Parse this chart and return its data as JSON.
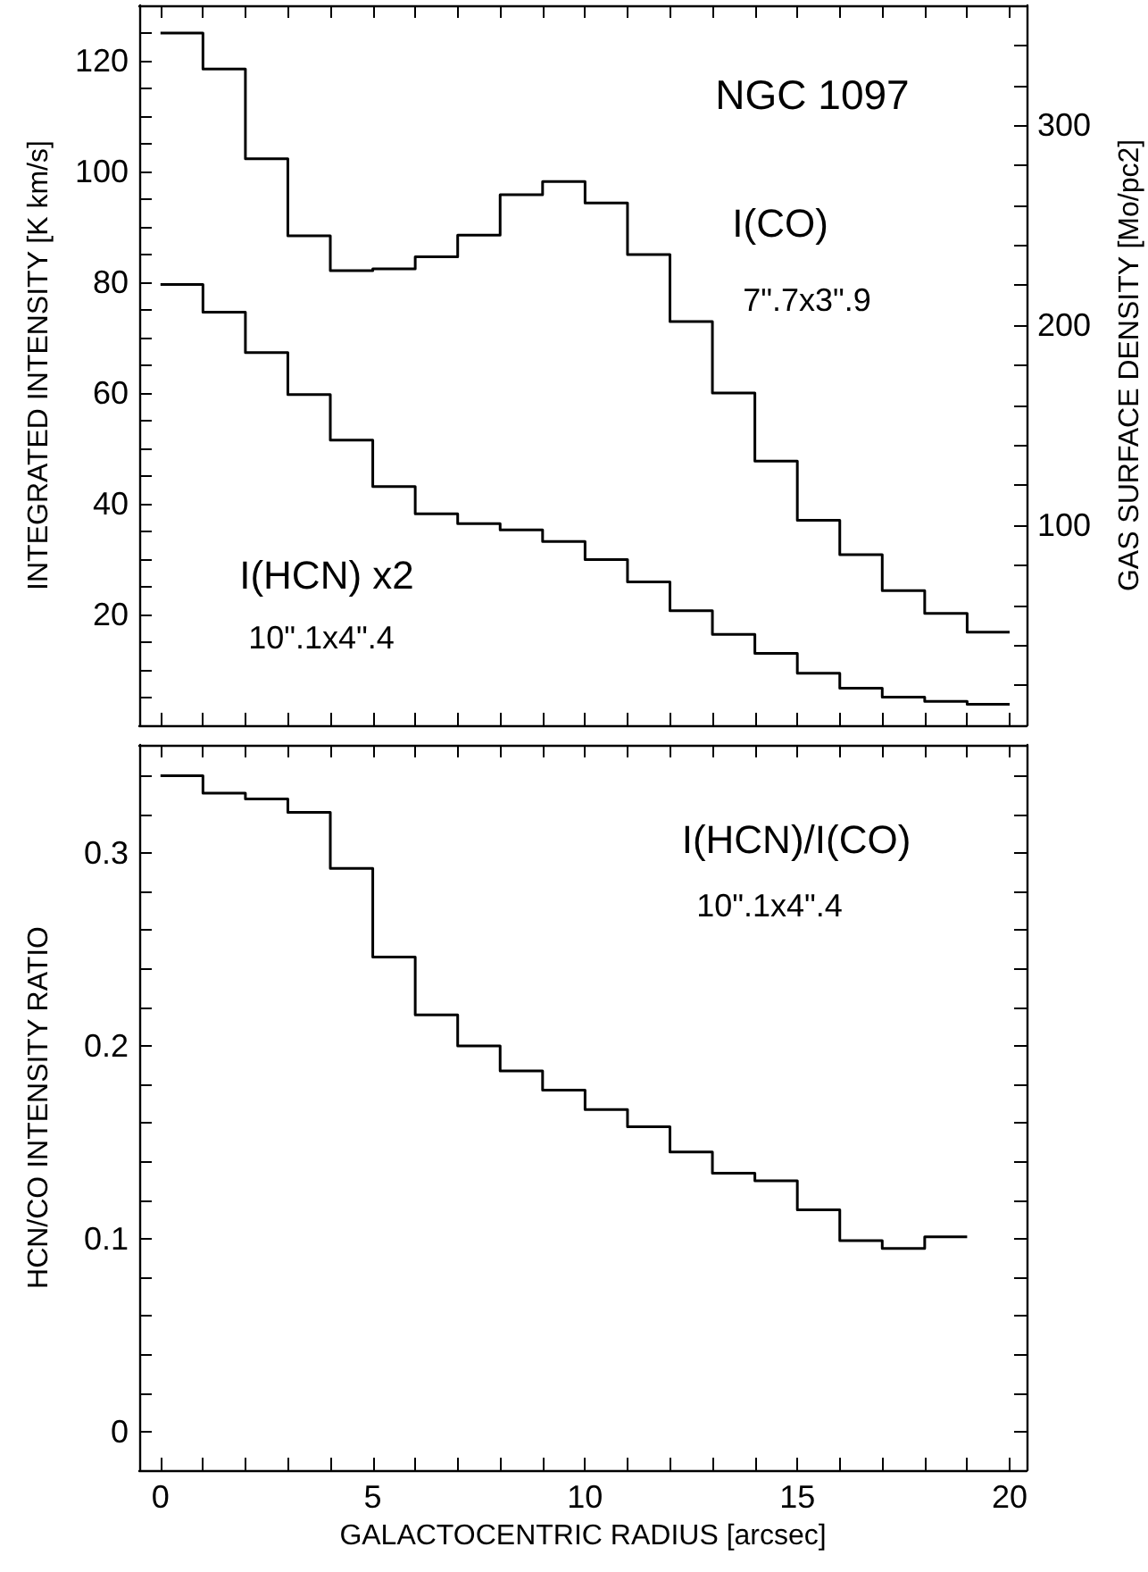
{
  "chart_data": [
    {
      "type": "step",
      "title": "NGC 1097",
      "ylabel": "INTEGRATED INTENSITY [K km/s]",
      "y2label": "GAS SURFACE DENSITY [Mo/pc2]",
      "annotations": [
        "7\".7x3\".9",
        "10\".1x4\".4"
      ],
      "x": [
        0,
        1,
        2,
        3,
        4,
        5,
        6,
        7,
        8,
        9,
        10,
        11,
        12,
        13,
        14,
        15,
        16,
        17,
        18,
        19,
        20
      ],
      "series": [
        {
          "name": "I(CO)",
          "color": "#000000",
          "values": [
            125,
            118.5,
            102.3,
            88.4,
            82.1,
            82.4,
            84.6,
            88.5,
            95.8,
            98.2,
            94.3,
            85,
            72.9,
            60,
            47.7,
            37,
            30.8,
            24.3,
            20.2,
            16.8,
            16.8
          ]
        },
        {
          "name": "I(HCN) x2",
          "color": "#000000",
          "values": [
            79.6,
            74.6,
            67.3,
            59.7,
            51.5,
            43.1,
            38.2,
            36.4,
            35.3,
            33.2,
            29.9,
            25.9,
            20.7,
            16.4,
            13,
            9.4,
            6.7,
            5.1,
            4.3,
            3.8,
            3.8
          ]
        }
      ],
      "xlim": [
        -0.5,
        20.4
      ],
      "xticks": [
        {
          "value": 0,
          "label": null
        },
        {
          "value": 1,
          "label": null
        },
        {
          "value": 2,
          "label": null
        },
        {
          "value": 3,
          "label": null
        },
        {
          "value": 4,
          "label": null
        },
        {
          "value": 5,
          "label": null
        },
        {
          "value": 6,
          "label": null
        },
        {
          "value": 7,
          "label": null
        },
        {
          "value": 8,
          "label": null
        },
        {
          "value": 9,
          "label": null
        },
        {
          "value": 10,
          "label": null
        },
        {
          "value": 11,
          "label": null
        },
        {
          "value": 12,
          "label": null
        },
        {
          "value": 13,
          "label": null
        },
        {
          "value": 14,
          "label": null
        },
        {
          "value": 15,
          "label": null
        },
        {
          "value": 16,
          "label": null
        },
        {
          "value": 17,
          "label": null
        },
        {
          "value": 18,
          "label": null
        },
        {
          "value": 19,
          "label": null
        },
        {
          "value": 20,
          "label": null
        }
      ],
      "ylim": [
        0,
        130
      ],
      "yticks": [
        {
          "value": 5,
          "label": null
        },
        {
          "value": 10,
          "label": null
        },
        {
          "value": 15,
          "label": null
        },
        20,
        {
          "value": 25,
          "label": null
        },
        {
          "value": 30,
          "label": null
        },
        {
          "value": 35,
          "label": null
        },
        40,
        {
          "value": 45,
          "label": null
        },
        {
          "value": 50,
          "label": null
        },
        {
          "value": 55,
          "label": null
        },
        60,
        {
          "value": 65,
          "label": null
        },
        {
          "value": 70,
          "label": null
        },
        {
          "value": 75,
          "label": null
        },
        80,
        {
          "value": 85,
          "label": null
        },
        {
          "value": 90,
          "label": null
        },
        {
          "value": 95,
          "label": null
        },
        100,
        {
          "value": 105,
          "label": null
        },
        {
          "value": 110,
          "label": null
        },
        {
          "value": 115,
          "label": null
        },
        120,
        {
          "value": 125,
          "label": null
        }
      ],
      "y2lim": [
        0,
        360
      ],
      "y2ticks": [
        {
          "value": 20,
          "label": null
        },
        {
          "value": 40,
          "label": null
        },
        {
          "value": 60,
          "label": null
        },
        {
          "value": 80,
          "label": null
        },
        100,
        {
          "value": 120,
          "label": null
        },
        {
          "value": 140,
          "label": null
        },
        {
          "value": 160,
          "label": null
        },
        {
          "value": 180,
          "label": null
        },
        200,
        {
          "value": 220,
          "label": null
        },
        {
          "value": 240,
          "label": null
        },
        {
          "value": 260,
          "label": null
        },
        {
          "value": 280,
          "label": null
        },
        300,
        {
          "value": 320,
          "label": null
        },
        {
          "value": 340,
          "label": null
        }
      ],
      "tick_labels": "y",
      "grid": false
    },
    {
      "type": "step",
      "xlabel": "GALACTOCENTRIC RADIUS [arcsec]",
      "ylabel": "HCN/CO INTENSITY RATIO",
      "annotations": [
        "10\".1x4\".4"
      ],
      "x": [
        0,
        1,
        2,
        3,
        4,
        5,
        6,
        7,
        8,
        9,
        10,
        11,
        12,
        13,
        14,
        15,
        16,
        17,
        18,
        19
      ],
      "series": [
        {
          "name": "I(HCN)/I(CO)",
          "color": "#000000",
          "values": [
            0.34,
            0.331,
            0.328,
            0.321,
            0.292,
            0.246,
            0.216,
            0.2,
            0.187,
            0.177,
            0.167,
            0.158,
            0.145,
            0.134,
            0.13,
            0.115,
            0.099,
            0.095,
            0.101,
            0.101
          ]
        }
      ],
      "xlim": [
        -0.5,
        20.4
      ],
      "xticks": [
        0,
        {
          "value": 1,
          "label": null
        },
        {
          "value": 2,
          "label": null
        },
        {
          "value": 3,
          "label": null
        },
        {
          "value": 4,
          "label": null
        },
        5,
        {
          "value": 6,
          "label": null
        },
        {
          "value": 7,
          "label": null
        },
        {
          "value": 8,
          "label": null
        },
        {
          "value": 9,
          "label": null
        },
        10,
        {
          "value": 11,
          "label": null
        },
        {
          "value": 12,
          "label": null
        },
        {
          "value": 13,
          "label": null
        },
        {
          "value": 14,
          "label": null
        },
        15,
        {
          "value": 16,
          "label": null
        },
        {
          "value": 17,
          "label": null
        },
        {
          "value": 18,
          "label": null
        },
        {
          "value": 19,
          "label": null
        },
        20
      ],
      "ylim": [
        -0.02,
        0.356
      ],
      "yticks": [
        0,
        {
          "value": 0.02,
          "label": null
        },
        {
          "value": 0.04,
          "label": null
        },
        {
          "value": 0.06,
          "label": null
        },
        {
          "value": 0.08,
          "label": null
        },
        0.1,
        {
          "value": 0.12,
          "label": null
        },
        {
          "value": 0.14,
          "label": null
        },
        {
          "value": 0.16,
          "label": null
        },
        {
          "value": 0.18,
          "label": null
        },
        0.2,
        {
          "value": 0.22,
          "label": null
        },
        {
          "value": 0.24,
          "label": null
        },
        {
          "value": 0.26,
          "label": null
        },
        {
          "value": 0.28,
          "label": null
        },
        0.3,
        {
          "value": 0.32,
          "label": null
        },
        {
          "value": 0.34,
          "label": null
        }
      ],
      "grid": false
    }
  ]
}
